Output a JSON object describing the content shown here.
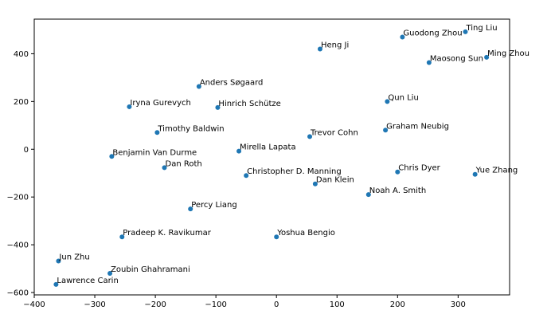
{
  "chart_data": {
    "type": "scatter",
    "title": "",
    "xlabel": "",
    "ylabel": "",
    "xlim": [
      -400,
      385
    ],
    "ylim": [
      -610,
      545
    ],
    "grid": false,
    "point_color": "#1f77b4",
    "xticks": [
      -400,
      -300,
      -200,
      -100,
      0,
      100,
      200,
      300
    ],
    "xtick_labels": [
      "−400",
      "−300",
      "−200",
      "−100",
      "0",
      "100",
      "200",
      "300"
    ],
    "yticks": [
      -600,
      -400,
      -200,
      0,
      200,
      400
    ],
    "ytick_labels": [
      "−600",
      "−400",
      "−200",
      "0",
      "200",
      "400"
    ],
    "points": [
      {
        "label": "Ting Liu",
        "x": 312,
        "y": 492
      },
      {
        "label": "Guodong Zhou",
        "x": 208,
        "y": 470
      },
      {
        "label": "Ming Zhou",
        "x": 347,
        "y": 385
      },
      {
        "label": "Maosong Sun",
        "x": 252,
        "y": 363
      },
      {
        "label": "Heng Ji",
        "x": 72,
        "y": 420
      },
      {
        "label": "Anders Søgaard",
        "x": -128,
        "y": 263
      },
      {
        "label": "Iryna Gurevych",
        "x": -243,
        "y": 178
      },
      {
        "label": "Hinrich Schütze",
        "x": -97,
        "y": 175
      },
      {
        "label": "Qun Liu",
        "x": 183,
        "y": 200
      },
      {
        "label": "Timothy Baldwin",
        "x": -197,
        "y": 70
      },
      {
        "label": "Trevor Cohn",
        "x": 55,
        "y": 53
      },
      {
        "label": "Graham Neubig",
        "x": 180,
        "y": 80
      },
      {
        "label": "Mirella Lapata",
        "x": -62,
        "y": -8
      },
      {
        "label": "Benjamin Van Durme",
        "x": -272,
        "y": -30
      },
      {
        "label": "Dan Roth",
        "x": -185,
        "y": -77
      },
      {
        "label": "Christopher D. Manning",
        "x": -50,
        "y": -110
      },
      {
        "label": "Dan Klein",
        "x": 64,
        "y": -145
      },
      {
        "label": "Chris Dyer",
        "x": 200,
        "y": -95
      },
      {
        "label": "Yue Zhang",
        "x": 328,
        "y": -105
      },
      {
        "label": "Noah A. Smith",
        "x": 152,
        "y": -190
      },
      {
        "label": "Percy Liang",
        "x": -142,
        "y": -250
      },
      {
        "label": "Pradeep K. Ravikumar",
        "x": -255,
        "y": -367
      },
      {
        "label": "Yoshua Bengio",
        "x": 0,
        "y": -367
      },
      {
        "label": "Jun Zhu",
        "x": -360,
        "y": -468
      },
      {
        "label": "Zoubin Ghahramani",
        "x": -275,
        "y": -520
      },
      {
        "label": "Lawrence Carin",
        "x": -364,
        "y": -566
      }
    ]
  }
}
